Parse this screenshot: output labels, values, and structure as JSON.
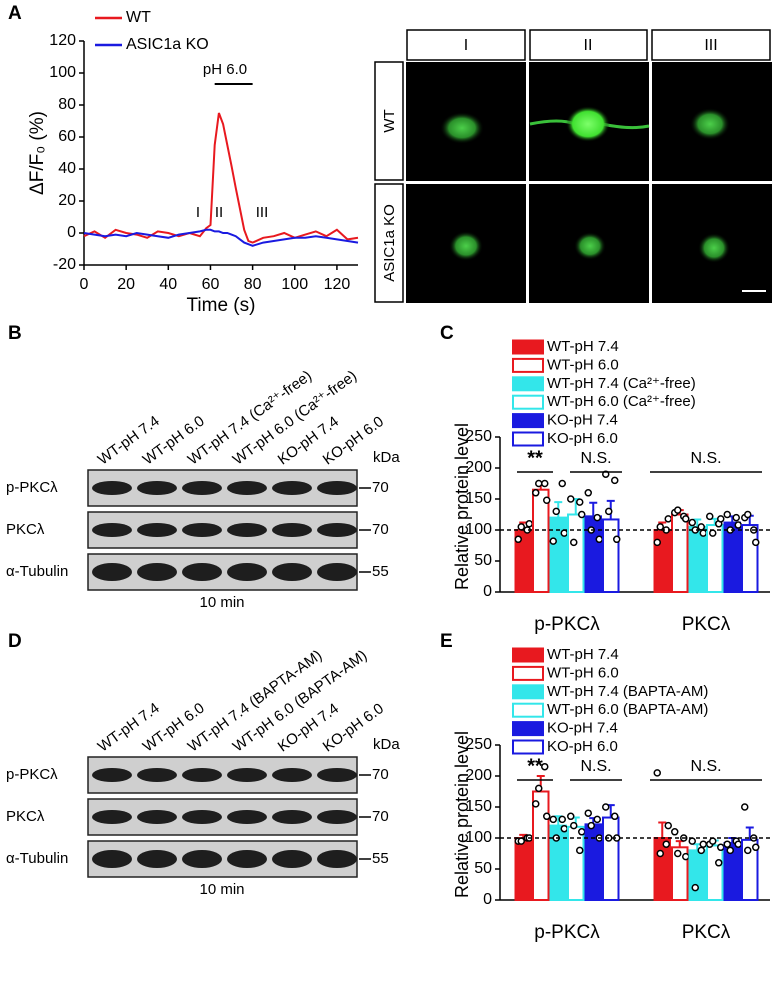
{
  "figure": {
    "panel_labels": [
      "A",
      "B",
      "C",
      "D",
      "E"
    ]
  },
  "images": {
    "columns": [
      "I",
      "II",
      "III"
    ],
    "rows": [
      "WT",
      "ASIC1a KO"
    ]
  },
  "blots": [
    {
      "lanes": [
        "WT-pH 7.4",
        "WT-pH 6.0",
        "WT-pH 7.4 (Ca²⁺-free)",
        "WT-pH 6.0 (Ca²⁺-free)",
        "KO-pH 7.4",
        "KO-pH 6.0"
      ],
      "rows": [
        "p-PKCλ",
        "PKCλ",
        "α-Tubulin"
      ],
      "markers": [
        "70",
        "70",
        "55"
      ],
      "unit": "kDa",
      "caption": "10 min"
    },
    {
      "lanes": [
        "WT-pH 7.4",
        "WT-pH 6.0",
        "WT-pH 7.4 (BAPTA-AM)",
        "WT-pH 6.0 (BAPTA-AM)",
        "KO-pH 7.4",
        "KO-pH 6.0"
      ],
      "rows": [
        "p-PKCλ",
        "PKCλ",
        "α-Tubulin"
      ],
      "markers": [
        "70",
        "70",
        "55"
      ],
      "unit": "kDa",
      "caption": "10 min"
    }
  ],
  "chart_data": [
    {
      "type": "line",
      "x_label": "Time (s)",
      "y_label": "ΔF/F₀ (%)",
      "x": [
        0,
        5,
        10,
        15,
        20,
        25,
        30,
        35,
        40,
        45,
        50,
        55,
        58,
        60,
        62,
        64,
        66,
        68,
        70,
        72,
        74,
        76,
        78,
        80,
        85,
        90,
        95,
        100,
        105,
        110,
        115,
        120,
        125,
        130
      ],
      "series": [
        {
          "name": "WT",
          "color": "#e8191f",
          "values": [
            -2,
            1,
            -3,
            2,
            0,
            -1,
            -3,
            1,
            0,
            -2,
            0,
            -2,
            3,
            5,
            55,
            75,
            68,
            55,
            42,
            28,
            15,
            2,
            -5,
            -6,
            -3,
            -2,
            0,
            -3,
            -1,
            1,
            -2,
            2,
            -4,
            -3
          ]
        },
        {
          "name": "ASIC1a KO",
          "color": "#1a1ae0",
          "values": [
            0,
            -1,
            -2,
            -1,
            -2,
            0,
            -1,
            -2,
            -3,
            -1,
            0,
            1,
            2,
            2,
            1,
            1,
            0,
            0,
            -1,
            -2,
            -4,
            -6,
            -7,
            -8,
            -6,
            -5,
            -4,
            -3,
            -3,
            -2,
            -3,
            -4,
            -5,
            -6
          ]
        }
      ],
      "annotations": [
        "pH 6.0",
        "I",
        "II",
        "III"
      ],
      "xlim": [
        0,
        130
      ],
      "xticks": [
        0,
        20,
        40,
        60,
        80,
        100,
        120
      ],
      "ylim": [
        -20,
        120
      ],
      "yticks": [
        -20,
        0,
        20,
        40,
        60,
        80,
        100,
        120
      ]
    },
    {
      "type": "bar",
      "y_label": "Relative protein level",
      "categories": [
        "p-PKCλ",
        "PKCλ"
      ],
      "series": [
        {
          "name": "WT-pH 7.4",
          "color": "#e8191f",
          "filled": true,
          "values": [
            100,
            100
          ],
          "errors": [
            12,
            12
          ],
          "points": [
            [
              85,
              100,
              105,
              110
            ],
            [
              80,
              100,
              105,
              118
            ]
          ]
        },
        {
          "name": "WT-pH 6.0",
          "color": "#e8191f",
          "filled": false,
          "values": [
            165,
            125
          ],
          "errors": [
            8,
            7
          ],
          "points": [
            [
              160,
              175,
              175,
              148
            ],
            [
              128,
              122,
              132,
              118
            ]
          ]
        },
        {
          "name": "WT-pH 7.4 (Ca²⁺-free)",
          "color": "#33e6ea",
          "filled": true,
          "values": [
            120,
            105
          ],
          "errors": [
            25,
            12
          ],
          "points": [
            [
              82,
              175,
              130,
              95
            ],
            [
              112,
              105,
              100,
              95
            ]
          ]
        },
        {
          "name": "WT-pH 6.0 (Ca²⁺-free)",
          "color": "#33e6ea",
          "filled": false,
          "values": [
            125,
            108
          ],
          "errors": [
            25,
            10
          ],
          "points": [
            [
              150,
              145,
              80,
              125
            ],
            [
              122,
              110,
              95,
              118
            ]
          ]
        },
        {
          "name": "KO-pH 7.4",
          "color": "#1a1ae0",
          "filled": true,
          "values": [
            122,
            112
          ],
          "errors": [
            22,
            10
          ],
          "points": [
            [
              160,
              120,
              100,
              85
            ],
            [
              125,
              120,
              100,
              108
            ]
          ]
        },
        {
          "name": "KO-pH 6.0",
          "color": "#1a1ae0",
          "filled": false,
          "values": [
            117,
            108
          ],
          "errors": [
            30,
            15
          ],
          "points": [
            [
              190,
              180,
              130,
              85
            ],
            [
              120,
              100,
              125,
              80
            ]
          ]
        }
      ],
      "annotations": [
        "**",
        "N.S.",
        "N.S."
      ],
      "reference_line": 100,
      "ylim": [
        0,
        250
      ],
      "yticks": [
        0,
        50,
        100,
        150,
        200,
        250
      ]
    },
    {
      "type": "bar",
      "y_label": "Relative protein level",
      "categories": [
        "p-PKCλ",
        "PKCλ"
      ],
      "series": [
        {
          "name": "WT-pH 7.4",
          "color": "#e8191f",
          "filled": true,
          "values": [
            100,
            100
          ],
          "errors": [
            5,
            25
          ],
          "points": [
            [
              95,
              100,
              95,
              100
            ],
            [
              205,
              90,
              75,
              120
            ]
          ]
        },
        {
          "name": "WT-pH 6.0",
          "color": "#e8191f",
          "filled": false,
          "values": [
            175,
            85
          ],
          "errors": [
            25,
            10
          ],
          "points": [
            [
              155,
              215,
              180,
              135
            ],
            [
              110,
              100,
              75,
              70
            ]
          ]
        },
        {
          "name": "WT-pH 7.4 (BAPTA-AM)",
          "color": "#33e6ea",
          "filled": true,
          "values": [
            120,
            80
          ],
          "errors": [
            15,
            10
          ],
          "points": [
            [
              130,
              130,
              100,
              115
            ],
            [
              95,
              80,
              20,
              90
            ]
          ]
        },
        {
          "name": "WT-pH 6.0 (BAPTA-AM)",
          "color": "#33e6ea",
          "filled": false,
          "values": [
            118,
            88
          ],
          "errors": [
            15,
            8
          ],
          "points": [
            [
              135,
              80,
              120,
              110
            ],
            [
              90,
              60,
              95,
              85
            ]
          ]
        },
        {
          "name": "KO-pH 7.4",
          "color": "#1a1ae0",
          "filled": true,
          "values": [
            122,
            92
          ],
          "errors": [
            10,
            8
          ],
          "points": [
            [
              140,
              130,
              120,
              100
            ],
            [
              90,
              95,
              80,
              90
            ]
          ]
        },
        {
          "name": "KO-pH 6.0",
          "color": "#1a1ae0",
          "filled": false,
          "values": [
            133,
            97
          ],
          "errors": [
            20,
            20
          ],
          "points": [
            [
              150,
              135,
              100,
              100
            ],
            [
              150,
              100,
              80,
              85
            ]
          ]
        }
      ],
      "annotations": [
        "**",
        "N.S.",
        "N.S."
      ],
      "reference_line": 100,
      "ylim": [
        0,
        250
      ],
      "yticks": [
        0,
        50,
        100,
        150,
        200,
        250
      ]
    }
  ]
}
